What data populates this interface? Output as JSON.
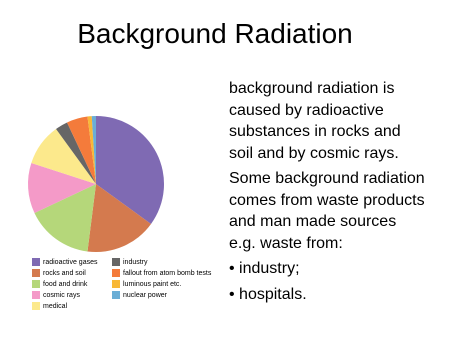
{
  "title": "Background Radiation",
  "paragraphs": [
    [
      "background radiation is",
      "caused by radioactive",
      "substances in rocks and",
      "soil and by cosmic rays."
    ],
    [
      "Some background radiation",
      "comes from waste products",
      "and man made sources",
      "e.g. waste from:"
    ]
  ],
  "bullets": [
    "industry;",
    "hospitals."
  ],
  "chart_data": {
    "type": "pie",
    "categories": [
      "radioactive gases",
      "rocks and soil",
      "food and drink",
      "cosmic rays",
      "medical",
      "industry",
      "fallout from atom bomb tests",
      "luminous paint etc.",
      "nuclear power"
    ],
    "values": [
      35,
      17,
      16,
      12,
      10,
      3,
      5,
      1,
      1
    ],
    "colors": [
      "#7f6ab3",
      "#d47a4e",
      "#b5d77a",
      "#f49ac8",
      "#fce98c",
      "#666666",
      "#f47b3b",
      "#f8b837",
      "#6aaed6"
    ]
  }
}
